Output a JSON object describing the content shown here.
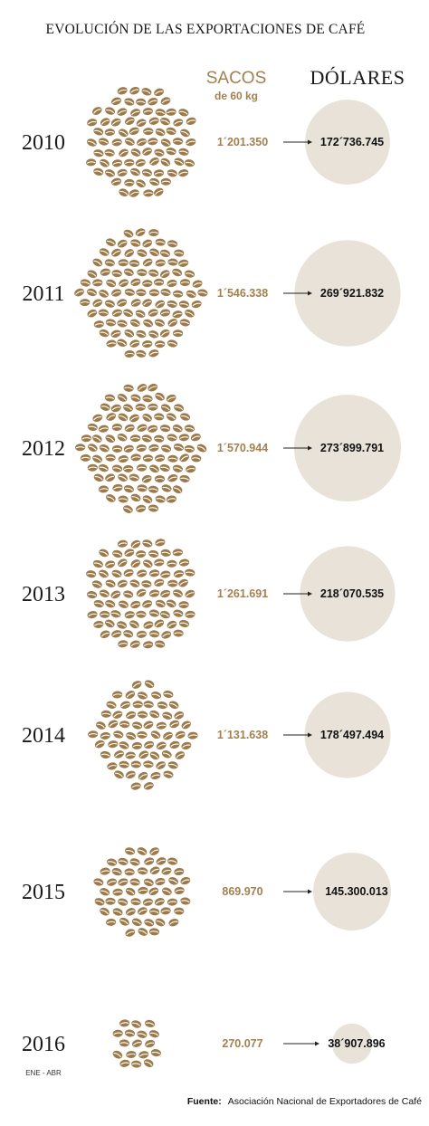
{
  "chart_data": {
    "type": "pictogram",
    "title": "EVOLUCIÓN DE LAS EXPORTACIONES DE CAFÉ",
    "columns": {
      "sacos": {
        "label": "SACOS",
        "sublabel": "de 60 kg"
      },
      "dolares": {
        "label": "DÓLARES"
      }
    },
    "rows": [
      {
        "year": "2010",
        "sublabel": "",
        "sacos": "1´201.350",
        "sacos_value": 1201350,
        "dolares": "172´736.745",
        "dolares_value": 172736745
      },
      {
        "year": "2011",
        "sublabel": "",
        "sacos": "1´546.338",
        "sacos_value": 1546338,
        "dolares": "269´921.832",
        "dolares_value": 269921832
      },
      {
        "year": "2012",
        "sublabel": "",
        "sacos": "1´570.944",
        "sacos_value": 1570944,
        "dolares": "273´899.791",
        "dolares_value": 273899791
      },
      {
        "year": "2013",
        "sublabel": "",
        "sacos": "1´261.691",
        "sacos_value": 1261691,
        "dolares": "218´070.535",
        "dolares_value": 218070535
      },
      {
        "year": "2014",
        "sublabel": "",
        "sacos": "1´131.638",
        "sacos_value": 1131638,
        "dolares": "178´497.494",
        "dolares_value": 178497494
      },
      {
        "year": "2015",
        "sublabel": "",
        "sacos": "869.970",
        "sacos_value": 869970,
        "dolares": "145.300.013",
        "dolares_value": 145300013
      },
      {
        "year": "2016",
        "sublabel": "ENE - ABR",
        "sacos": "270.077",
        "sacos_value": 270077,
        "dolares": "38´907.896",
        "dolares_value": 38907896
      }
    ],
    "source_label": "Fuente:",
    "source": "Asociación Nacional de Exportadores de Café"
  },
  "colors": {
    "bean": "#9c7a4a",
    "bean_crease": "#ffffff",
    "dollar_circle": "#e8e2d8",
    "accent": "#a4804f",
    "text": "#111111"
  }
}
